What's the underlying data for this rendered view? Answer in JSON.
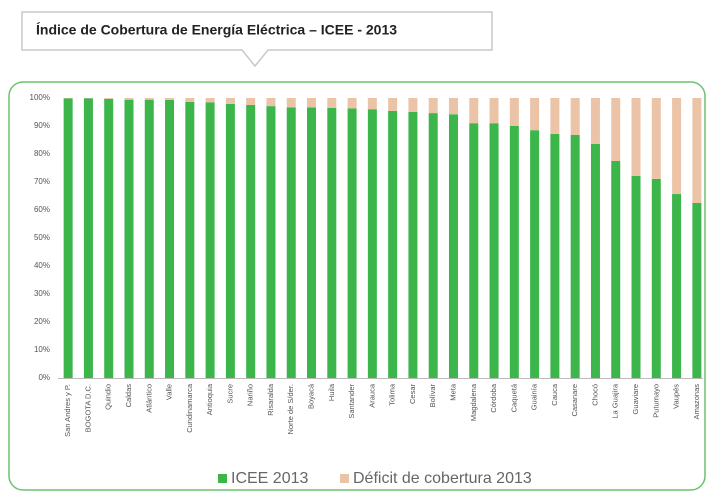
{
  "chart_data": {
    "type": "stacked_bar",
    "title": "Índice de Cobertura de Energía Eléctrica – ICEE - 2013",
    "categories": [
      "San Andres y P.",
      "BOGOTA D.C.",
      "Quindio",
      "Caldas",
      "Atlántico",
      "Valle",
      "Cundinamarca",
      "Antioquia",
      "Sucre",
      "Nariño",
      "Risaralda",
      "Norte de S/der.",
      "Boyacá",
      "Huila",
      "Santander",
      "Arauca",
      "Tolima",
      "Cesar",
      "Bolívar",
      "Meta",
      "Magdalena",
      "Córdoba",
      "Caquetá",
      "Guainía",
      "Cauca",
      "Casanare",
      "Chocó",
      "La Guajira",
      "Guaviare",
      "Putumayo",
      "Vaupés",
      "Amazonas"
    ],
    "series": [
      {
        "name": "ICEE 2013",
        "color": "#3cb54a",
        "values": [
          99.9,
          99.9,
          99.7,
          99.4,
          99.4,
          99.3,
          98.6,
          98.4,
          97.9,
          97.5,
          97.1,
          96.6,
          96.6,
          96.5,
          96.3,
          96.0,
          95.4,
          95.0,
          94.6,
          94.2,
          91.0,
          91.0,
          90.0,
          88.5,
          87.2,
          86.8,
          83.6,
          77.5,
          72.2,
          71.1,
          65.7,
          62.5
        ]
      },
      {
        "name": "Déficit de cobertura 2013",
        "color": "#ebc3a6",
        "values": [
          0.1,
          0.1,
          0.3,
          0.6,
          0.6,
          0.7,
          1.4,
          1.6,
          2.1,
          2.5,
          2.9,
          3.4,
          3.4,
          3.5,
          3.7,
          4.0,
          4.6,
          5.0,
          5.4,
          5.8,
          9.0,
          9.0,
          10.0,
          11.5,
          12.8,
          13.2,
          16.4,
          22.5,
          27.8,
          28.9,
          34.3,
          37.5
        ]
      }
    ],
    "ylim": [
      0,
      100
    ],
    "yticks": [
      {
        "value": 0,
        "label": "0%"
      },
      {
        "value": 10,
        "label": "10%"
      },
      {
        "value": 20,
        "label": "20%"
      },
      {
        "value": 30,
        "label": "30%"
      },
      {
        "value": 40,
        "label": "40%"
      },
      {
        "value": 50,
        "label": "50%"
      },
      {
        "value": 60,
        "label": "60%"
      },
      {
        "value": 70,
        "label": "70%"
      },
      {
        "value": 80,
        "label": "80%"
      },
      {
        "value": 90,
        "label": "90%"
      },
      {
        "value": 100,
        "label": "100%"
      }
    ],
    "grid": false,
    "legend": "bottom"
  }
}
